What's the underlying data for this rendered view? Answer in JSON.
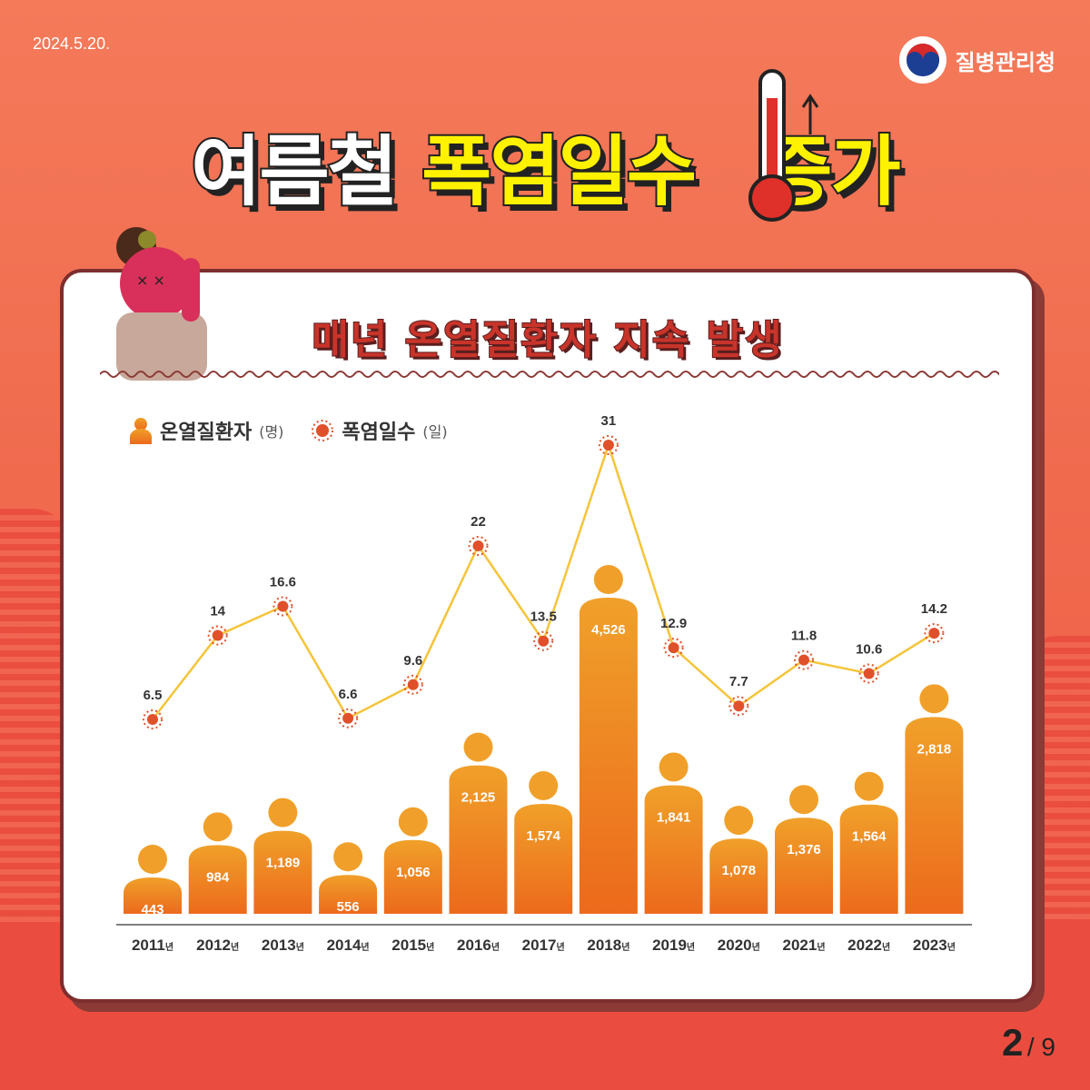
{
  "header": {
    "date": "2024.5.20.",
    "org_name": "질병관리청"
  },
  "title": {
    "part1": "여름철",
    "part2": "폭염일수",
    "part3": "증가"
  },
  "card": {
    "subtitle": "매년 온열질환자 지속 발생"
  },
  "legend": {
    "patients_label": "온열질환자",
    "patients_unit": "(명)",
    "heat_days_label": "폭염일수",
    "heat_days_unit": "(일)"
  },
  "chart_data": {
    "type": "bar",
    "categories": [
      "2011",
      "2012",
      "2013",
      "2014",
      "2015",
      "2016",
      "2017",
      "2018",
      "2019",
      "2020",
      "2021",
      "2022",
      "2023"
    ],
    "category_suffix": "년",
    "series": [
      {
        "name": "온열질환자",
        "unit": "명",
        "type": "bar",
        "values": [
          443,
          984,
          1189,
          556,
          1056,
          2125,
          1574,
          4526,
          1841,
          1078,
          1376,
          1564,
          2818
        ],
        "labels": [
          "443",
          "984",
          "1,189",
          "556",
          "1,056",
          "2,125",
          "1,574",
          "4,526",
          "1,841",
          "1,078",
          "1,376",
          "1,564",
          "2,818"
        ]
      },
      {
        "name": "폭염일수",
        "unit": "일",
        "type": "line",
        "values": [
          6.5,
          14,
          16.6,
          6.6,
          9.6,
          22,
          13.5,
          31,
          12.9,
          7.7,
          11.8,
          10.6,
          14.2
        ],
        "labels": [
          "6.5",
          "14",
          "16.6",
          "6.6",
          "9.6",
          "22",
          "13.5",
          "31",
          "12.9",
          "7.7",
          "11.8",
          "10.6",
          "14.2"
        ]
      }
    ],
    "colors": {
      "bar_top": "#f0a02a",
      "bar_bottom": "#ec6a1c",
      "line": "#f5c43a",
      "marker": "#e0502a"
    }
  },
  "pagination": {
    "current": "2",
    "total": "/ 9"
  }
}
